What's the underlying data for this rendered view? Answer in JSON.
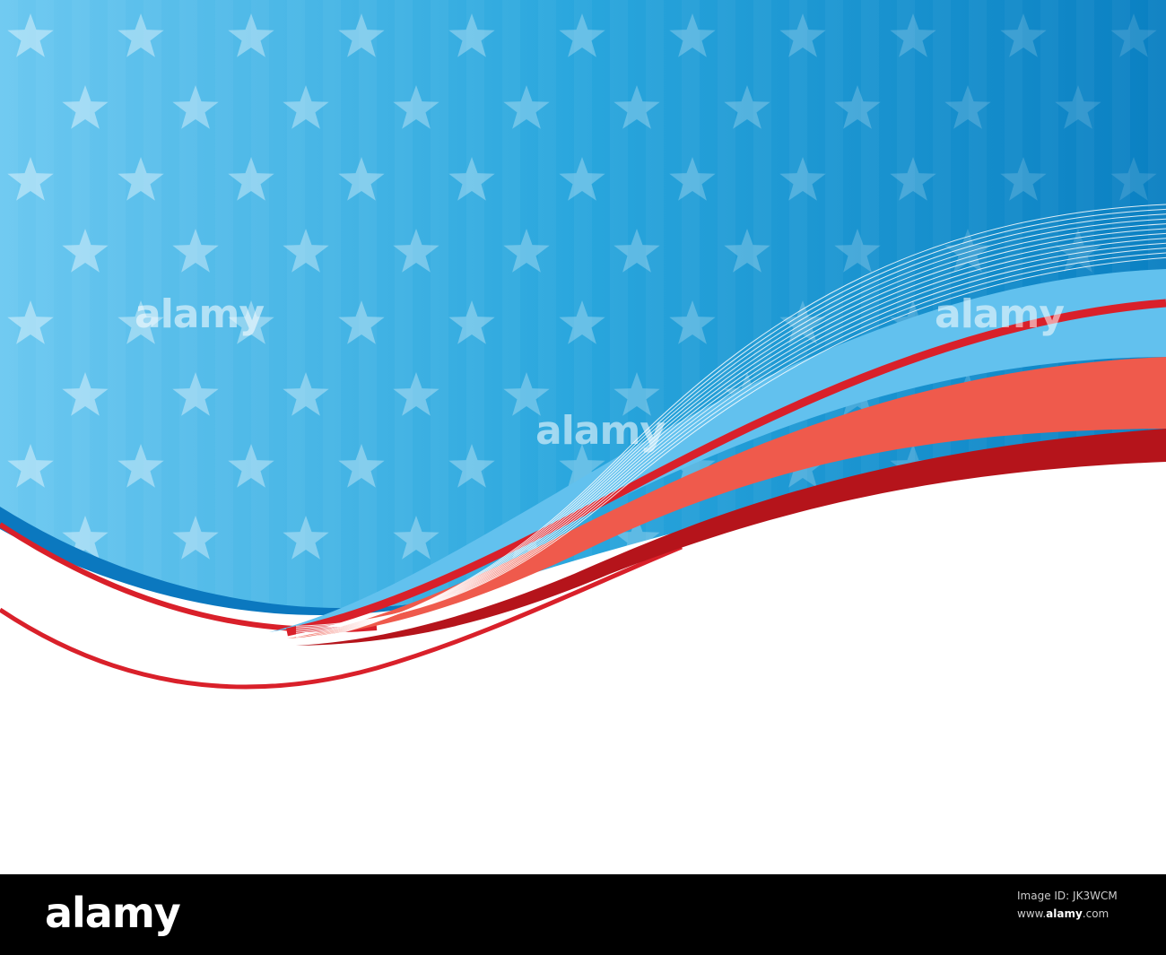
{
  "artwork": {
    "colors": {
      "sky_light": "#6cc4ef",
      "sky_dark": "#0a85c6",
      "red": "#d9202a",
      "dark_red": "#b5141b",
      "coral": "#ef5a4c",
      "light_blue_band": "#62c1ee",
      "deep_blue_edge": "#0b78bf"
    },
    "icons": [
      "star-icon"
    ]
  },
  "watermarks": [
    "alamy",
    "alamy",
    "alamy"
  ],
  "footer": {
    "logo": "alamy",
    "line1": "Image ID: JK3WCM",
    "line2_prefix": "www.",
    "line2_brand": "alamy",
    "line2_suffix": ".com"
  }
}
